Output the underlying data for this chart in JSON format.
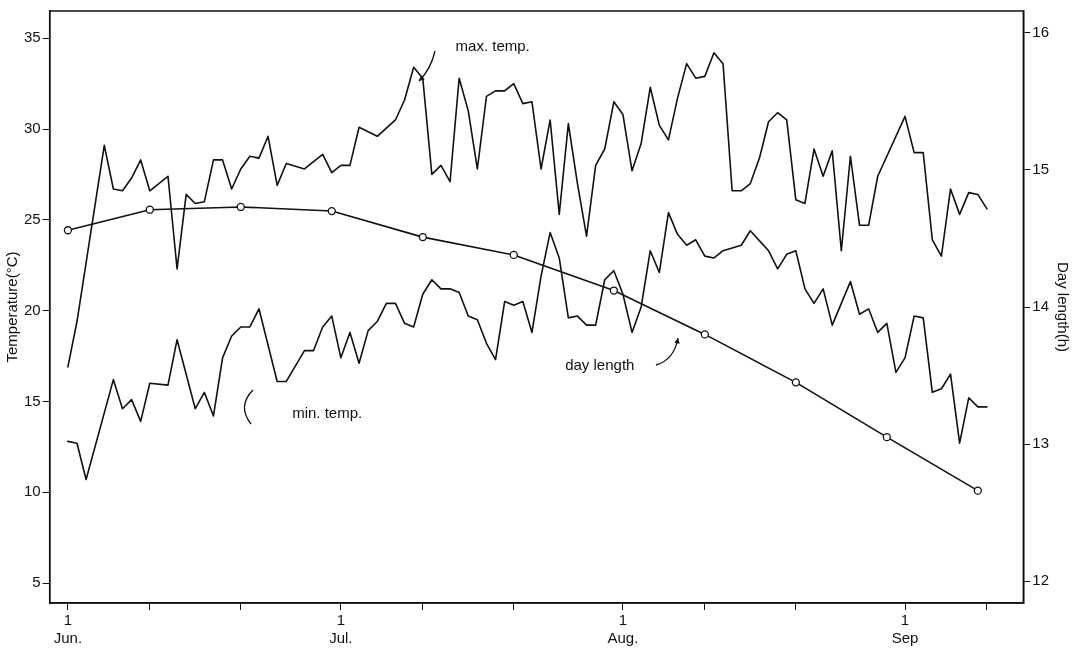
{
  "chart_data": {
    "type": "line",
    "ylabel": "Temperature(°C)",
    "y2label": "Day length(h)",
    "xlim": [
      "--05-30",
      "--09-14"
    ],
    "xticks": [
      {
        "value": "--06-01",
        "label": "1\nJun."
      },
      {
        "value": "--06-10",
        "label": null
      },
      {
        "value": "--06-20",
        "label": null
      },
      {
        "value": "--07-01",
        "label": "1\nJul."
      },
      {
        "value": "--07-10",
        "label": null
      },
      {
        "value": "--07-20",
        "label": null
      },
      {
        "value": "--08-01",
        "label": "1\nAug."
      },
      {
        "value": "--08-10",
        "label": null
      },
      {
        "value": "--08-20",
        "label": null
      },
      {
        "value": "--09-01",
        "label": "1\nSep"
      },
      {
        "value": "--09-10",
        "label": null
      }
    ],
    "ylim": [
      3.9,
      36.5
    ],
    "yticks": [
      5,
      10,
      15,
      20,
      25,
      30,
      35
    ],
    "y2lim": [
      11.84,
      16.16
    ],
    "y2ticks": [
      12,
      13,
      14,
      15,
      16
    ],
    "grid": false,
    "legend": false,
    "series": [
      {
        "color": "#111111",
        "marker": "none",
        "line_style": "solid",
        "x": [
          "--06-01",
          "--06-02",
          "--06-05",
          "--06-06",
          "--06-07",
          "--06-08",
          "--06-09",
          "--06-10",
          "--06-11",
          "--06-12",
          "--06-13",
          "--06-14",
          "--06-15",
          "--06-16",
          "--06-17",
          "--06-18",
          "--06-19",
          "--06-20",
          "--06-21",
          "--06-22",
          "--06-23",
          "--06-24",
          "--06-25",
          "--06-27",
          "--06-29",
          "--06-30",
          "--07-01",
          "--07-02",
          "--07-03",
          "--07-05",
          "--07-07",
          "--07-08",
          "--07-09",
          "--07-10",
          "--07-11",
          "--07-12",
          "--07-13",
          "--07-14",
          "--07-15",
          "--07-16",
          "--07-17",
          "--07-18",
          "--07-19",
          "--07-20",
          "--07-21",
          "--07-22",
          "--07-23",
          "--07-24",
          "--07-25",
          "--07-26",
          "--07-27",
          "--07-28",
          "--07-29",
          "--07-30",
          "--07-31",
          "--08-01",
          "--08-02",
          "--08-03",
          "--08-04",
          "--08-05",
          "--08-06",
          "--08-07",
          "--08-08",
          "--08-09",
          "--08-10",
          "--08-11",
          "--08-12",
          "--08-13",
          "--08-14",
          "--08-15",
          "--08-16",
          "--08-17",
          "--08-18",
          "--08-19",
          "--08-20",
          "--08-21",
          "--08-22",
          "--08-23",
          "--08-24",
          "--08-25",
          "--08-26",
          "--08-27",
          "--08-28",
          "--08-29",
          "--09-01",
          "--09-02",
          "--09-03",
          "--09-04",
          "--09-05",
          "--09-06",
          "--09-07",
          "--09-08",
          "--09-09",
          "--09-10"
        ],
        "values": [
          16.9,
          19.4,
          29.1,
          26.7,
          26.6,
          27.3,
          28.3,
          26.6,
          27.0,
          27.4,
          22.3,
          26.4,
          25.9,
          26.0,
          28.3,
          28.3,
          26.7,
          27.8,
          28.5,
          28.4,
          29.6,
          26.9,
          28.1,
          27.8,
          28.6,
          27.6,
          28.0,
          28.0,
          30.1,
          29.6,
          30.5,
          31.6,
          33.4,
          32.8,
          27.5,
          28.0,
          27.1,
          32.8,
          31.0,
          27.8,
          31.8,
          32.1,
          32.1,
          32.5,
          31.4,
          31.5,
          27.8,
          30.5,
          25.3,
          30.3,
          27.0,
          24.1,
          28.0,
          28.9,
          31.5,
          30.8,
          27.7,
          29.2,
          32.3,
          30.2,
          29.4,
          31.7,
          33.6,
          32.8,
          32.9,
          34.2,
          33.6,
          26.6,
          26.6,
          27.0,
          28.4,
          30.4,
          30.9,
          30.5,
          26.1,
          25.9,
          28.9,
          27.4,
          28.8,
          23.3,
          28.5,
          24.7,
          24.7,
          27.4,
          30.7,
          28.7,
          28.7,
          23.9,
          23.0,
          26.7,
          25.3,
          26.5,
          26.4,
          25.6
        ]
      },
      {
        "color": "#111111",
        "marker": "none",
        "line_style": "solid",
        "x": [
          "--06-01",
          "--06-02",
          "--06-03",
          "--06-06",
          "--06-07",
          "--06-08",
          "--06-09",
          "--06-10",
          "--06-12",
          "--06-13",
          "--06-15",
          "--06-16",
          "--06-17",
          "--06-18",
          "--06-19",
          "--06-20",
          "--06-21",
          "--06-22",
          "--06-24",
          "--06-25",
          "--06-27",
          "--06-28",
          "--06-29",
          "--06-30",
          "--07-01",
          "--07-02",
          "--07-03",
          "--07-04",
          "--07-05",
          "--07-06",
          "--07-07",
          "--07-08",
          "--07-09",
          "--07-10",
          "--07-11",
          "--07-12",
          "--07-13",
          "--07-14",
          "--07-15",
          "--07-16",
          "--07-17",
          "--07-18",
          "--07-19",
          "--07-20",
          "--07-21",
          "--07-22",
          "--07-23",
          "--07-24",
          "--07-25",
          "--07-26",
          "--07-27",
          "--07-28",
          "--07-29",
          "--07-30",
          "--07-31",
          "--08-01",
          "--08-02",
          "--08-03",
          "--08-04",
          "--08-05",
          "--08-06",
          "--08-07",
          "--08-08",
          "--08-09",
          "--08-10",
          "--08-11",
          "--08-12",
          "--08-14",
          "--08-15",
          "--08-17",
          "--08-18",
          "--08-19",
          "--08-20",
          "--08-21",
          "--08-22",
          "--08-23",
          "--08-24",
          "--08-26",
          "--08-27",
          "--08-28",
          "--08-29",
          "--08-30",
          "--08-31",
          "--09-01",
          "--09-02",
          "--09-03",
          "--09-04",
          "--09-05",
          "--09-06",
          "--09-07",
          "--09-08",
          "--09-09",
          "--09-10"
        ],
        "values": [
          12.8,
          12.7,
          10.7,
          16.2,
          14.6,
          15.1,
          13.9,
          16.0,
          15.9,
          18.4,
          14.6,
          15.5,
          14.2,
          17.4,
          18.6,
          19.1,
          19.1,
          20.1,
          16.1,
          16.1,
          17.8,
          17.8,
          19.1,
          19.7,
          17.4,
          18.8,
          17.1,
          18.9,
          19.4,
          20.4,
          20.4,
          19.3,
          19.1,
          20.9,
          21.7,
          21.2,
          21.2,
          21.0,
          19.7,
          19.5,
          18.2,
          17.3,
          20.5,
          20.3,
          20.5,
          18.8,
          21.9,
          24.3,
          22.9,
          19.6,
          19.7,
          19.2,
          19.2,
          21.7,
          22.2,
          20.9,
          18.8,
          20.2,
          23.3,
          22.1,
          25.4,
          24.2,
          23.6,
          23.9,
          23.0,
          22.9,
          23.3,
          23.6,
          24.4,
          23.3,
          22.3,
          23.1,
          23.3,
          21.2,
          20.4,
          21.2,
          19.2,
          21.6,
          19.8,
          20.1,
          18.8,
          19.3,
          16.6,
          17.4,
          19.7,
          19.6,
          15.5,
          15.7,
          16.5,
          12.7,
          15.2,
          14.7,
          14.7
        ]
      },
      {
        "color": "#111111",
        "marker": "circle",
        "line_style": "solid",
        "axis": "y2",
        "x": [
          "--06-01",
          "--06-10",
          "--06-20",
          "--06-30",
          "--07-10",
          "--07-20",
          "--07-31",
          "--08-10",
          "--08-20",
          "--08-30",
          "--09-09"
        ],
        "values": [
          14.56,
          14.71,
          14.73,
          14.7,
          14.51,
          14.38,
          14.12,
          13.8,
          13.45,
          13.05,
          12.66
        ]
      }
    ],
    "annotations": [
      "max. temp.",
      "min. temp.",
      "day length"
    ]
  }
}
